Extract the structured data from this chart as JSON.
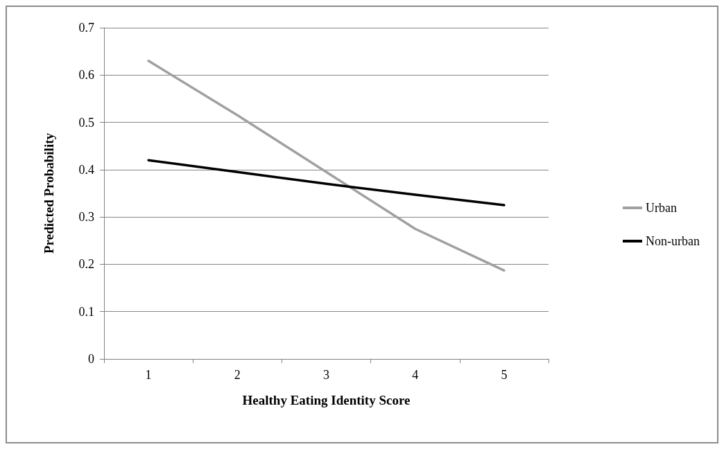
{
  "chart_data": {
    "type": "line",
    "xlabel": "Healthy Eating Identity Score",
    "ylabel": "Predicted Probability",
    "categories": [
      "1",
      "2",
      "3",
      "4",
      "5"
    ],
    "series": [
      {
        "name": "Urban",
        "color": "#a0a0a0",
        "values": [
          0.63,
          0.515,
          0.395,
          0.275,
          0.187
        ]
      },
      {
        "name": "Non-urban",
        "color": "#000000",
        "values": [
          0.42,
          0.395,
          0.37,
          0.347,
          0.325
        ]
      }
    ],
    "ylim": [
      0,
      0.7
    ],
    "yticks": [
      0,
      0.1,
      0.2,
      0.3,
      0.4,
      0.5,
      0.6,
      0.7
    ],
    "grid": "y",
    "legend": "right",
    "marker": "none",
    "line_style": "solid"
  }
}
